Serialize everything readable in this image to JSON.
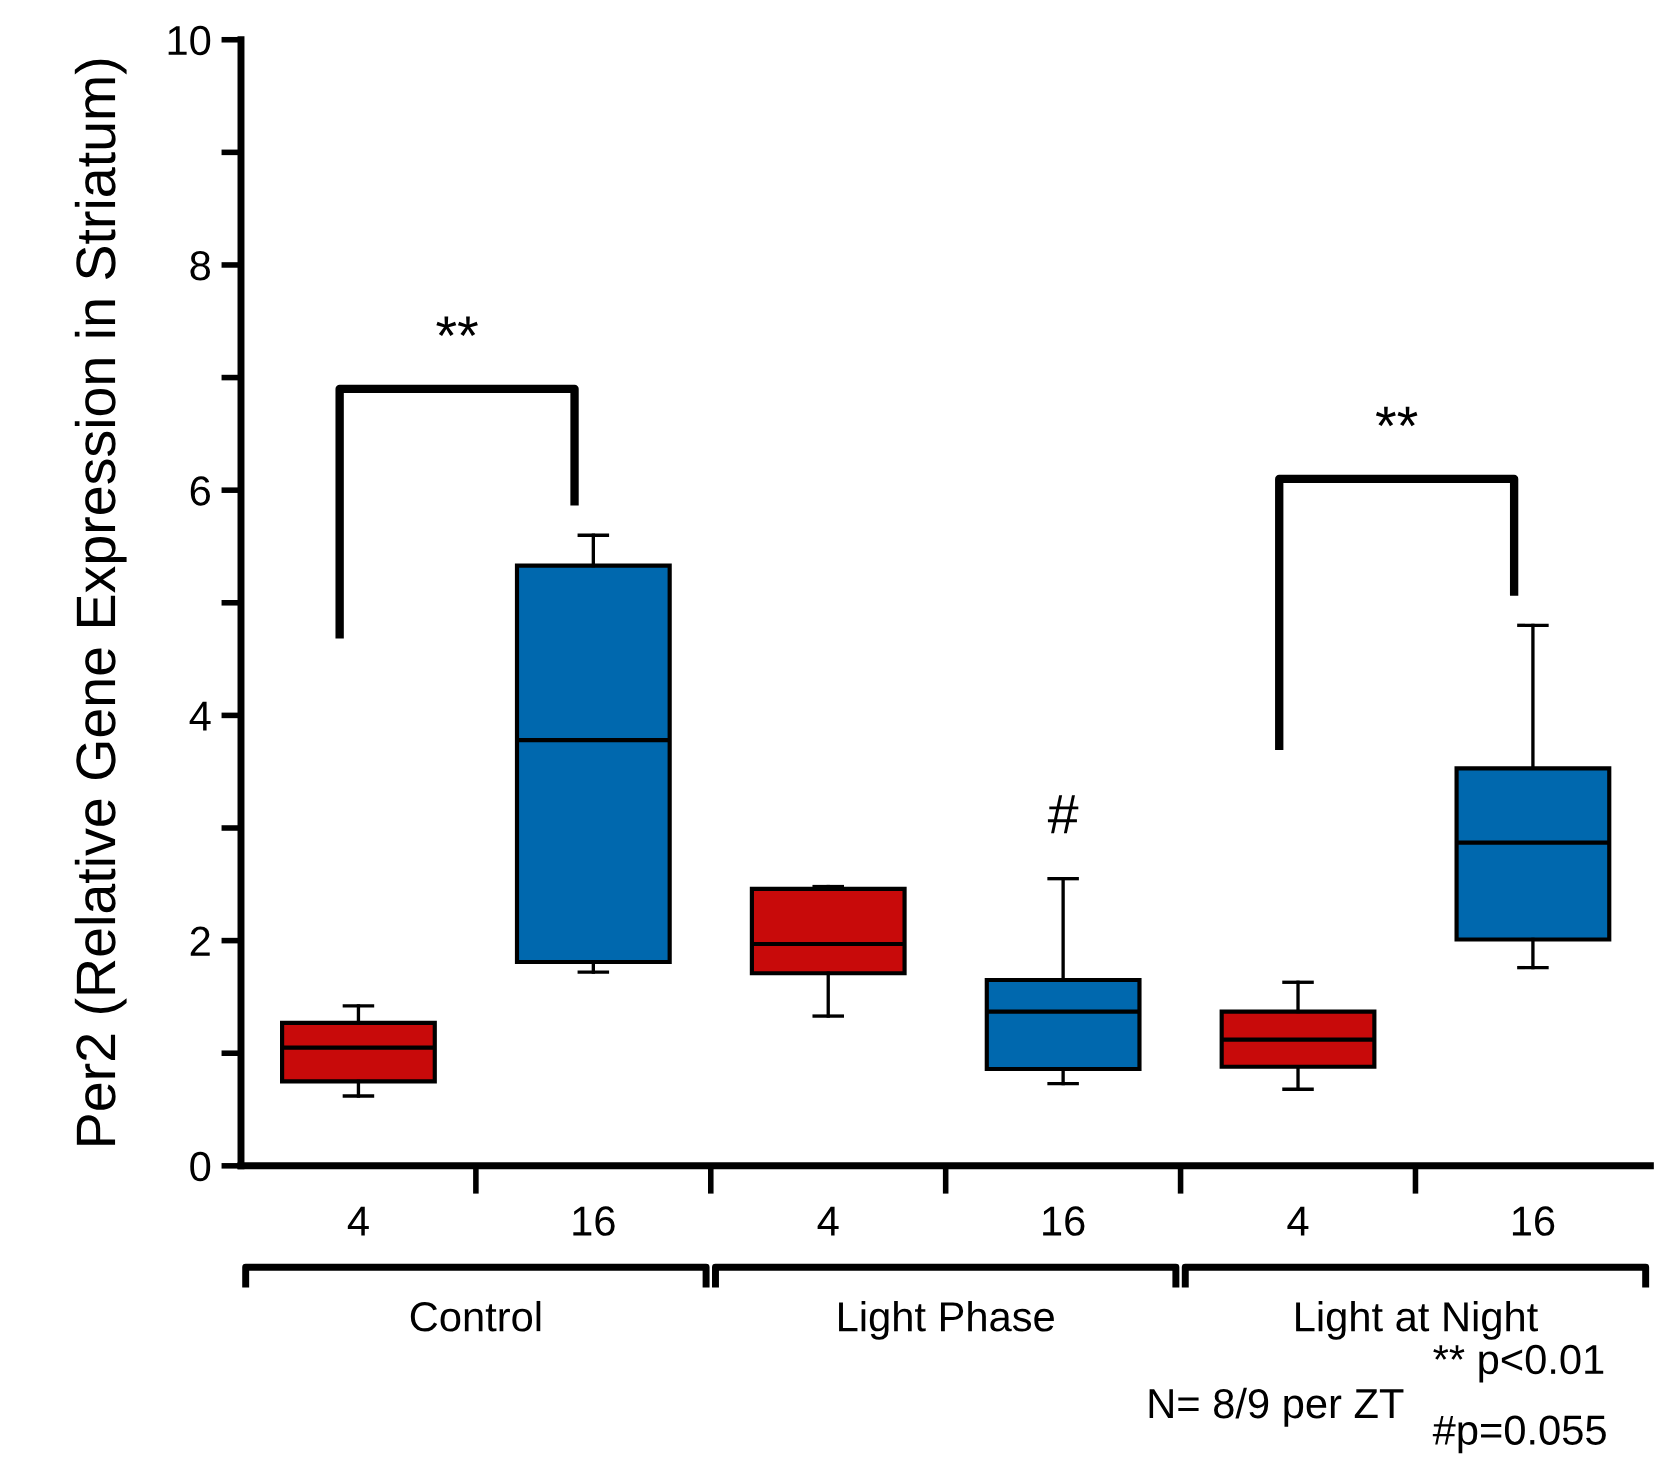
{
  "chart_data": {
    "type": "box",
    "ylabel": "Per2 (Relative Gene Expression in Striatum)",
    "categories": [
      "4",
      "16",
      "4",
      "16",
      "4",
      "16"
    ],
    "colors": [
      "#c80a0a",
      "#0068ae",
      "#c80a0a",
      "#0068ae",
      "#c80a0a",
      "#0068ae"
    ],
    "boxes": [
      {
        "low": 0.62,
        "q1": 0.75,
        "median": 1.05,
        "q3": 1.27,
        "high": 1.42
      },
      {
        "low": 1.72,
        "q1": 1.81,
        "median": 3.78,
        "q3": 5.33,
        "high": 5.6
      },
      {
        "low": 1.33,
        "q1": 1.71,
        "median": 1.97,
        "q3": 2.46,
        "high": 2.48
      },
      {
        "low": 0.73,
        "q1": 0.86,
        "median": 1.37,
        "q3": 1.65,
        "high": 2.55
      },
      {
        "low": 0.68,
        "q1": 0.88,
        "median": 1.12,
        "q3": 1.37,
        "high": 1.63
      },
      {
        "low": 1.76,
        "q1": 2.01,
        "median": 2.87,
        "q3": 3.53,
        "high": 4.8
      }
    ],
    "ylim": [
      0,
      10
    ],
    "yticks": [
      0,
      {
        "value": 1,
        "label": null
      },
      2,
      {
        "value": 3,
        "label": null
      },
      4,
      {
        "value": 5,
        "label": null
      },
      6,
      {
        "value": 7,
        "label": null
      },
      8,
      {
        "value": 9,
        "label": null
      },
      10
    ],
    "grid": false,
    "annotations": [
      "**",
      "**",
      "#",
      "Control",
      "Light Phase",
      "Light at Night",
      "N= 8/9 per ZT",
      "** p<0.01",
      "#p=0.055"
    ]
  }
}
